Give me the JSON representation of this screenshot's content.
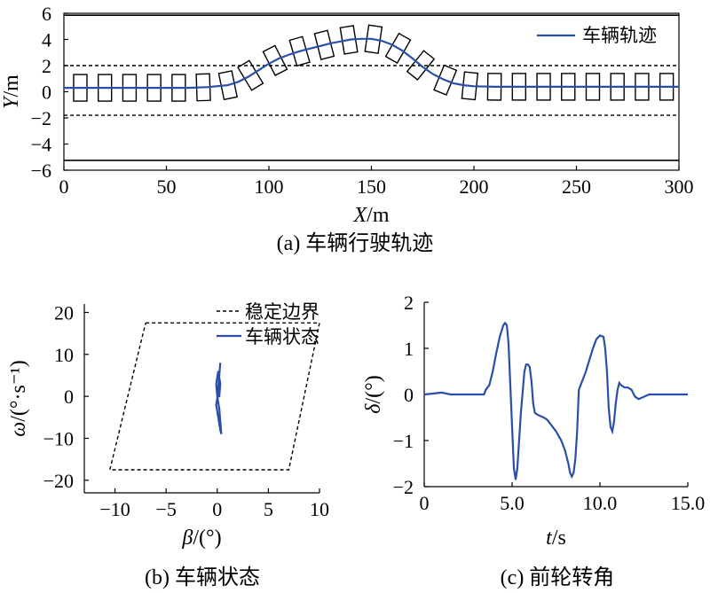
{
  "chart_data": [
    {
      "id": "a",
      "type": "line",
      "caption": "(a) 车辆行驶轨迹",
      "xlabel": {
        "var": "X",
        "unit": "/m"
      },
      "ylabel": {
        "var": "Y",
        "unit": "/m"
      },
      "xlim": [
        0,
        300
      ],
      "ylim": [
        -6,
        6
      ],
      "xticks": [
        0,
        50,
        100,
        150,
        200,
        250,
        300
      ],
      "yticks": [
        6,
        4,
        2,
        0,
        -2,
        -4,
        -6
      ],
      "legend_position": "top-right",
      "series": [
        {
          "name": "车辆轨迹",
          "color": "#2a4fa8",
          "x": [
            0,
            20,
            40,
            60,
            70,
            80,
            85,
            90,
            95,
            100,
            105,
            110,
            115,
            120,
            125,
            130,
            135,
            140,
            145,
            150,
            155,
            160,
            165,
            170,
            175,
            180,
            185,
            190,
            195,
            200,
            210,
            230,
            260,
            300
          ],
          "y": [
            0.3,
            0.3,
            0.3,
            0.3,
            0.35,
            0.5,
            0.75,
            1.15,
            1.65,
            2.15,
            2.55,
            2.85,
            3.1,
            3.3,
            3.5,
            3.7,
            3.85,
            4.0,
            4.05,
            4.05,
            3.9,
            3.6,
            3.15,
            2.55,
            1.9,
            1.35,
            0.95,
            0.65,
            0.5,
            0.42,
            0.38,
            0.38,
            0.38,
            0.38
          ]
        }
      ],
      "reference_lines": [
        {
          "y": 5.85,
          "style": "solid"
        },
        {
          "y": 2.0,
          "style": "dashed"
        },
        {
          "y": -1.8,
          "style": "dashed"
        },
        {
          "y": -5.25,
          "style": "solid"
        }
      ],
      "vehicle_outlines_x": [
        8,
        20,
        32,
        44,
        56,
        68,
        80,
        91,
        103,
        115,
        127,
        139,
        151,
        163,
        174,
        186,
        198,
        210,
        222,
        234,
        246,
        258,
        270,
        282,
        294
      ]
    },
    {
      "id": "b",
      "type": "line",
      "caption": "(b) 车辆状态",
      "xlabel": {
        "var": "β",
        "unit": "/(°)"
      },
      "ylabel": {
        "var": "ω",
        "unit": "/(°·s⁻¹)"
      },
      "xlim": [
        -13,
        10
      ],
      "ylim": [
        -23,
        22
      ],
      "xticks": [
        -10,
        -5,
        0,
        5,
        10
      ],
      "yticks": [
        20,
        10,
        0,
        -10,
        -20
      ],
      "legend_position": "top-right",
      "series": [
        {
          "name": "稳定边界",
          "style": "dashed",
          "color": "#000000",
          "x": [
            -7,
            10,
            7,
            -10.5,
            -7
          ],
          "y": [
            17.5,
            17.5,
            -17.5,
            -17.5,
            17.5
          ]
        },
        {
          "name": "车辆状态",
          "color": "#2a4fa8",
          "x": [
            0,
            0.1,
            0.2,
            0.3,
            0.2,
            0.1,
            -0.1,
            0.1,
            0.3,
            0.4,
            0.3,
            0.2,
            0,
            -0.1,
            0.1,
            0.3,
            0.2,
            0
          ],
          "y": [
            0,
            2,
            5,
            8,
            5,
            1,
            -2,
            -5,
            -8,
            -9,
            -6,
            -3,
            0,
            3,
            6,
            3,
            0,
            0
          ]
        }
      ]
    },
    {
      "id": "c",
      "type": "line",
      "caption": "(c) 前轮转角",
      "xlabel": {
        "var": "t",
        "unit": "/s"
      },
      "ylabel": {
        "var": "δ",
        "unit": "/(°)"
      },
      "xlim": [
        0,
        15
      ],
      "ylim": [
        -2,
        2
      ],
      "xticks": [
        "0",
        "5.0",
        "10.0",
        "15.0"
      ],
      "xtick_values": [
        0,
        5,
        10,
        15
      ],
      "yticks": [
        2,
        1,
        0,
        -1,
        -2
      ],
      "series": [
        {
          "name": "",
          "color": "#2a4fa8",
          "x": [
            0,
            0.5,
            1.0,
            1.5,
            2.5,
            3.4,
            3.5,
            3.7,
            3.9,
            4.1,
            4.3,
            4.5,
            4.6,
            4.7,
            4.8,
            4.9,
            5.0,
            5.1,
            5.2,
            5.3,
            5.5,
            5.7,
            5.8,
            5.9,
            6.0,
            6.1,
            6.2,
            6.3,
            6.5,
            6.8,
            7.0,
            7.2,
            7.5,
            7.8,
            8.0,
            8.2,
            8.3,
            8.4,
            8.5,
            8.6,
            8.7,
            8.8,
            9.0,
            9.2,
            9.4,
            9.6,
            9.8,
            10.0,
            10.2,
            10.3,
            10.4,
            10.5,
            10.6,
            10.7,
            10.8,
            10.9,
            11.0,
            11.1,
            11.2,
            11.4,
            11.6,
            11.8,
            12.0,
            12.2,
            12.5,
            12.8,
            13.0,
            13.5,
            14.0,
            14.5,
            15.0
          ],
          "y": [
            0,
            0.02,
            0.04,
            0.0,
            0.0,
            0.0,
            0.1,
            0.2,
            0.5,
            0.9,
            1.25,
            1.5,
            1.55,
            1.5,
            1.1,
            0.2,
            -0.7,
            -1.6,
            -1.85,
            -1.6,
            -0.4,
            0.5,
            0.65,
            0.65,
            0.6,
            0.3,
            -0.2,
            -0.4,
            -0.45,
            -0.5,
            -0.55,
            -0.65,
            -0.8,
            -1.0,
            -1.2,
            -1.5,
            -1.7,
            -1.78,
            -1.7,
            -1.4,
            -0.8,
            0.1,
            0.3,
            0.5,
            0.75,
            1.0,
            1.2,
            1.28,
            1.25,
            1.0,
            0.5,
            -0.3,
            -0.7,
            -0.8,
            -0.6,
            -0.2,
            0.1,
            0.25,
            0.2,
            0.15,
            0.15,
            0.1,
            -0.05,
            -0.1,
            -0.05,
            0.0,
            0.0,
            0.0,
            0.0,
            0.0,
            0.0
          ]
        }
      ]
    }
  ]
}
